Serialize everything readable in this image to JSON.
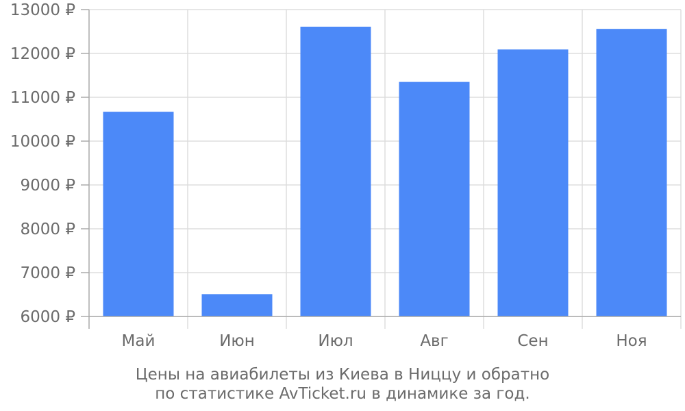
{
  "chart_data": {
    "type": "bar",
    "categories": [
      "Май",
      "Июн",
      "Июл",
      "Авг",
      "Сен",
      "Ноя"
    ],
    "values": [
      10670,
      6510,
      12610,
      11350,
      12090,
      12560
    ],
    "ylim": [
      6000,
      13000
    ],
    "yticks": [
      6000,
      7000,
      8000,
      9000,
      10000,
      11000,
      12000,
      13000
    ],
    "ytick_labels": [
      "6000 ₽",
      "7000 ₽",
      "8000 ₽",
      "9000 ₽",
      "10000 ₽",
      "11000 ₽",
      "12000 ₽",
      "13000 ₽"
    ],
    "grid": true,
    "bar_color": "#4c89f8",
    "grid_color": "#dddddd",
    "axis_color": "#aaaaaa",
    "text_color": "#6b6b6b"
  },
  "caption": {
    "line1": "Цены на авиабилеты из Киева в Ниццу и обратно",
    "line2": "по статистике AvTicket.ru в динамике за год."
  }
}
